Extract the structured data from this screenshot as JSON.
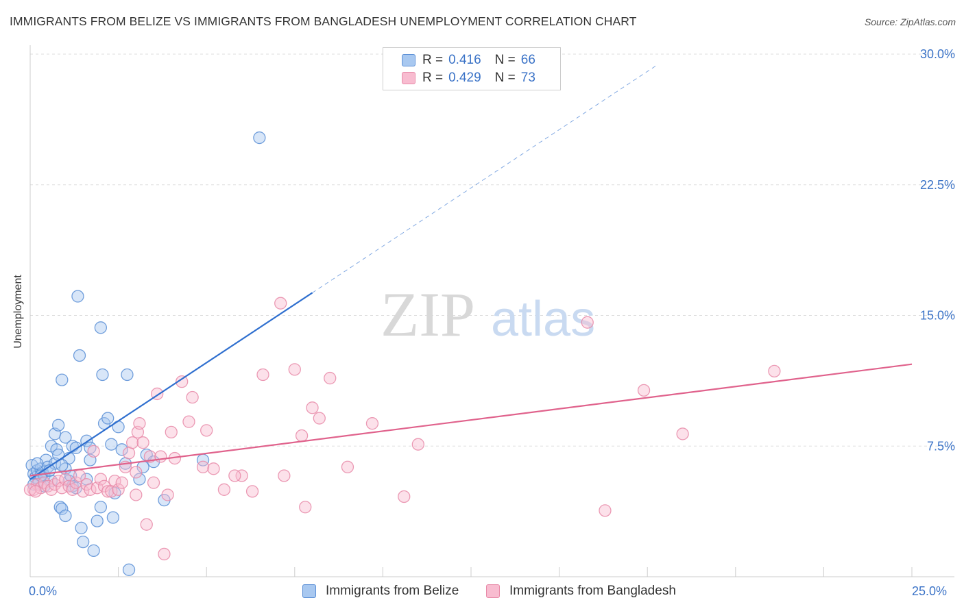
{
  "chart_data": {
    "type": "scatter",
    "title": "IMMIGRANTS FROM BELIZE VS IMMIGRANTS FROM BANGLADESH UNEMPLOYMENT CORRELATION CHART",
    "source": "Source: ZipAtlas.com",
    "xlabel": "",
    "ylabel": "Unemployment",
    "xlim": [
      0,
      25
    ],
    "ylim": [
      0,
      30
    ],
    "grid": true,
    "x_tick_labels": [
      "0.0%",
      "25.0%"
    ],
    "y_tick_labels": [
      "30.0%",
      "22.5%",
      "15.0%",
      "7.5%"
    ],
    "y_ticks": [
      30,
      22.5,
      15,
      7.5
    ],
    "watermark": {
      "zip": "ZIP",
      "atlas": "atlas"
    },
    "legend": {
      "r_label": "R =",
      "n_label": "N =",
      "entries": [
        {
          "name": "Immigrants from Belize",
          "r": "0.416",
          "n": "66",
          "color": "#a8c8f0",
          "edge": "#5b8fd6"
        },
        {
          "name": "Immigrants from Bangladesh",
          "r": "0.429",
          "n": "73",
          "color": "#f8bcd0",
          "edge": "#e88aa8"
        }
      ]
    },
    "series": [
      {
        "name": "Immigrants from Belize",
        "color": "#a8c8f0",
        "edge": "#5b8fd6",
        "line_color": "#2f6fcf",
        "trend": {
          "x0": 0,
          "y0": 5.6,
          "x_solid_end": 8.0,
          "x_dash_end": 17.8
        },
        "points": [
          [
            0.05,
            6.4
          ],
          [
            0.1,
            5.9
          ],
          [
            0.15,
            5.7
          ],
          [
            0.2,
            6.1
          ],
          [
            0.25,
            5.5
          ],
          [
            0.3,
            6.2
          ],
          [
            0.35,
            6.0
          ],
          [
            0.4,
            5.8
          ],
          [
            0.45,
            6.7
          ],
          [
            0.5,
            6.3
          ],
          [
            0.6,
            5.5
          ],
          [
            0.6,
            7.5
          ],
          [
            0.7,
            8.2
          ],
          [
            0.7,
            6.5
          ],
          [
            0.75,
            7.3
          ],
          [
            0.8,
            8.7
          ],
          [
            0.85,
            4.0
          ],
          [
            0.9,
            3.9
          ],
          [
            0.9,
            11.3
          ],
          [
            1.0,
            3.5
          ],
          [
            1.0,
            8.0
          ],
          [
            1.1,
            5.5
          ],
          [
            1.1,
            6.8
          ],
          [
            1.2,
            7.5
          ],
          [
            1.3,
            7.4
          ],
          [
            1.35,
            16.1
          ],
          [
            1.4,
            12.7
          ],
          [
            1.45,
            2.8
          ],
          [
            1.5,
            2.0
          ],
          [
            1.6,
            7.8
          ],
          [
            1.7,
            7.4
          ],
          [
            1.8,
            1.5
          ],
          [
            1.9,
            3.2
          ],
          [
            2.0,
            14.3
          ],
          [
            2.05,
            11.6
          ],
          [
            2.1,
            8.8
          ],
          [
            2.2,
            9.1
          ],
          [
            2.3,
            7.6
          ],
          [
            2.35,
            3.4
          ],
          [
            2.4,
            4.8
          ],
          [
            2.5,
            8.6
          ],
          [
            2.6,
            7.3
          ],
          [
            2.7,
            6.5
          ],
          [
            2.75,
            11.6
          ],
          [
            2.8,
            0.4
          ],
          [
            3.1,
            5.6
          ],
          [
            3.2,
            6.3
          ],
          [
            1.2,
            5.2
          ],
          [
            1.0,
            6.2
          ],
          [
            0.4,
            5.2
          ],
          [
            0.3,
            5.8
          ],
          [
            0.2,
            6.5
          ],
          [
            0.8,
            7.0
          ],
          [
            1.6,
            5.6
          ],
          [
            2.0,
            4.0
          ],
          [
            1.3,
            5.1
          ],
          [
            0.55,
            6.1
          ],
          [
            1.15,
            5.8
          ],
          [
            3.3,
            7.0
          ],
          [
            3.5,
            6.6
          ],
          [
            3.8,
            4.4
          ],
          [
            4.9,
            6.7
          ],
          [
            6.5,
            25.2
          ],
          [
            0.9,
            6.4
          ],
          [
            1.7,
            6.7
          ],
          [
            0.1,
            5.3
          ]
        ]
      },
      {
        "name": "Immigrants from Bangladesh",
        "color": "#f8bcd0",
        "edge": "#e88aa8",
        "line_color": "#e0628c",
        "trend": {
          "x0": 0,
          "y0": 5.8,
          "x_solid_end": 25.0
        },
        "points": [
          [
            0.1,
            5.0
          ],
          [
            0.2,
            5.3
          ],
          [
            0.3,
            5.1
          ],
          [
            0.4,
            5.4
          ],
          [
            0.5,
            5.2
          ],
          [
            0.6,
            5.0
          ],
          [
            0.7,
            5.3
          ],
          [
            0.8,
            5.5
          ],
          [
            0.9,
            5.1
          ],
          [
            1.0,
            5.6
          ],
          [
            1.1,
            5.2
          ],
          [
            1.2,
            5.0
          ],
          [
            1.3,
            5.4
          ],
          [
            1.4,
            5.8
          ],
          [
            1.5,
            4.9
          ],
          [
            1.6,
            5.3
          ],
          [
            1.7,
            5.0
          ],
          [
            1.8,
            7.2
          ],
          [
            1.9,
            5.1
          ],
          [
            2.0,
            5.6
          ],
          [
            2.1,
            5.2
          ],
          [
            2.2,
            4.9
          ],
          [
            2.3,
            4.9
          ],
          [
            2.4,
            5.5
          ],
          [
            2.5,
            5.0
          ],
          [
            2.6,
            5.4
          ],
          [
            2.7,
            6.3
          ],
          [
            2.8,
            7.1
          ],
          [
            2.9,
            7.7
          ],
          [
            3.0,
            4.7
          ],
          [
            3.05,
            8.3
          ],
          [
            3.1,
            8.8
          ],
          [
            3.2,
            7.7
          ],
          [
            3.3,
            3.0
          ],
          [
            3.4,
            6.9
          ],
          [
            3.5,
            5.4
          ],
          [
            3.6,
            10.5
          ],
          [
            3.7,
            6.9
          ],
          [
            3.8,
            1.3
          ],
          [
            3.9,
            4.7
          ],
          [
            4.0,
            8.3
          ],
          [
            4.1,
            6.8
          ],
          [
            4.3,
            11.2
          ],
          [
            4.5,
            8.9
          ],
          [
            4.6,
            10.3
          ],
          [
            4.9,
            6.3
          ],
          [
            5.0,
            8.4
          ],
          [
            5.2,
            6.2
          ],
          [
            5.5,
            5.0
          ],
          [
            6.0,
            5.8
          ],
          [
            6.3,
            4.9
          ],
          [
            6.6,
            11.6
          ],
          [
            7.1,
            15.7
          ],
          [
            7.2,
            5.8
          ],
          [
            7.5,
            11.9
          ],
          [
            7.7,
            8.1
          ],
          [
            7.8,
            4.0
          ],
          [
            8.0,
            9.7
          ],
          [
            8.2,
            9.1
          ],
          [
            8.5,
            11.4
          ],
          [
            9.0,
            6.3
          ],
          [
            9.7,
            8.8
          ],
          [
            10.6,
            4.6
          ],
          [
            11.0,
            7.6
          ],
          [
            15.8,
            14.6
          ],
          [
            16.3,
            3.8
          ],
          [
            17.4,
            10.7
          ],
          [
            18.5,
            8.2
          ],
          [
            21.1,
            11.8
          ],
          [
            0.0,
            5.0
          ],
          [
            0.15,
            4.9
          ],
          [
            3.0,
            6.0
          ],
          [
            5.8,
            5.8
          ]
        ]
      }
    ]
  }
}
